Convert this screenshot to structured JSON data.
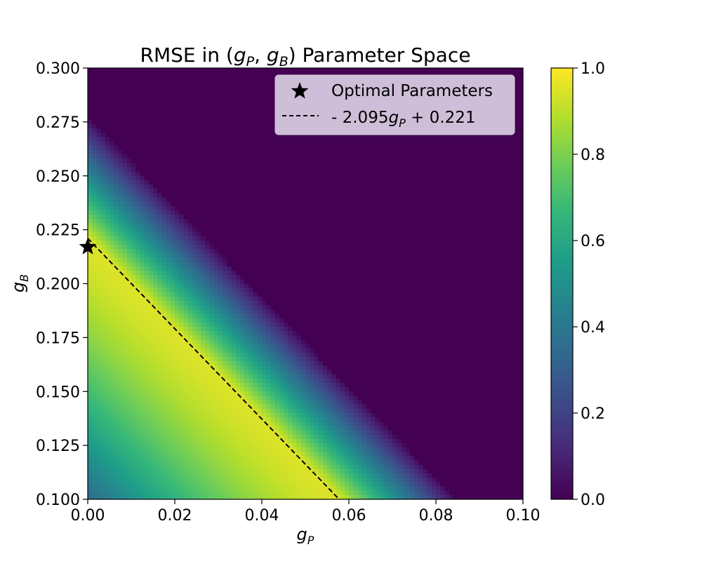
{
  "chart_data": {
    "type": "heatmap",
    "title_prefix": "RMSE in (",
    "title_suffix": ") Parameter Space",
    "xlabel": "g",
    "xlabel_sub": "P",
    "ylabel": "g",
    "ylabel_sub": "B",
    "xlim": [
      0.0,
      0.1
    ],
    "ylim": [
      0.1,
      0.3
    ],
    "x_ticks": [
      "0.00",
      "0.02",
      "0.04",
      "0.06",
      "0.08",
      "0.10"
    ],
    "y_ticks": [
      "0.100",
      "0.125",
      "0.150",
      "0.175",
      "0.200",
      "0.225",
      "0.250",
      "0.275",
      "0.300"
    ],
    "colorbar_ticks": [
      "0.0",
      "0.2",
      "0.4",
      "0.6",
      "0.8",
      "1.0"
    ],
    "colorbar_range": [
      0.0,
      1.0
    ],
    "colormap": "viridis",
    "grid": false,
    "optimal_point": {
      "x": 0.0,
      "y": 0.217,
      "marker": "star"
    },
    "fit_line": {
      "slope": -2.095,
      "intercept": 0.221,
      "style": "dashed"
    },
    "legend": {
      "placement": "top-right",
      "entries": [
        {
          "label": "Optimal Parameters"
        },
        {
          "label_prefix": "- 2.095",
          "label_var": "g",
          "label_sub": "P",
          "label_suffix": " + 0.221"
        }
      ]
    }
  }
}
